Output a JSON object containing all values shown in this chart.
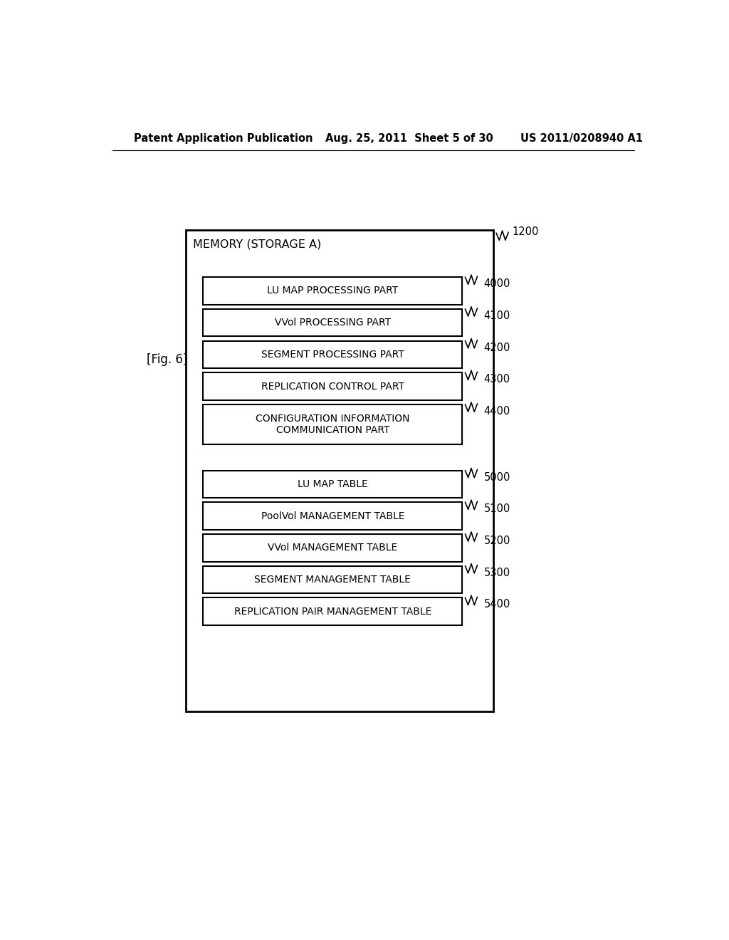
{
  "header_left": "Patent Application Publication",
  "header_mid": "Aug. 25, 2011  Sheet 5 of 30",
  "header_right": "US 2011/0208940 A1",
  "fig_label": "[Fig. 6]",
  "outer_box_label": "MEMORY (STORAGE A)",
  "outer_label_id": "1200",
  "boxes": [
    {
      "label": "LU MAP PROCESSING PART",
      "id": "4000",
      "two_line": false
    },
    {
      "label": "VVol PROCESSING PART",
      "id": "4100",
      "two_line": false
    },
    {
      "label": "SEGMENT PROCESSING PART",
      "id": "4200",
      "two_line": false
    },
    {
      "label": "REPLICATION CONTROL PART",
      "id": "4300",
      "two_line": false
    },
    {
      "label": "CONFIGURATION INFORMATION\nCOMMUNICATION PART",
      "id": "4400",
      "two_line": true
    },
    {
      "label": "LU MAP TABLE",
      "id": "5000",
      "two_line": false
    },
    {
      "label": "PoolVol MANAGEMENT TABLE",
      "id": "5100",
      "two_line": false
    },
    {
      "label": "VVol MANAGEMENT TABLE",
      "id": "5200",
      "two_line": false
    },
    {
      "label": "SEGMENT MANAGEMENT TABLE",
      "id": "5300",
      "two_line": false
    },
    {
      "label": "REPLICATION PAIR MANAGEMENT TABLE",
      "id": "5400",
      "two_line": false
    }
  ],
  "background_color": "#ffffff",
  "box_facecolor": "#ffffff",
  "box_edgecolor": "#000000",
  "text_color": "#000000"
}
